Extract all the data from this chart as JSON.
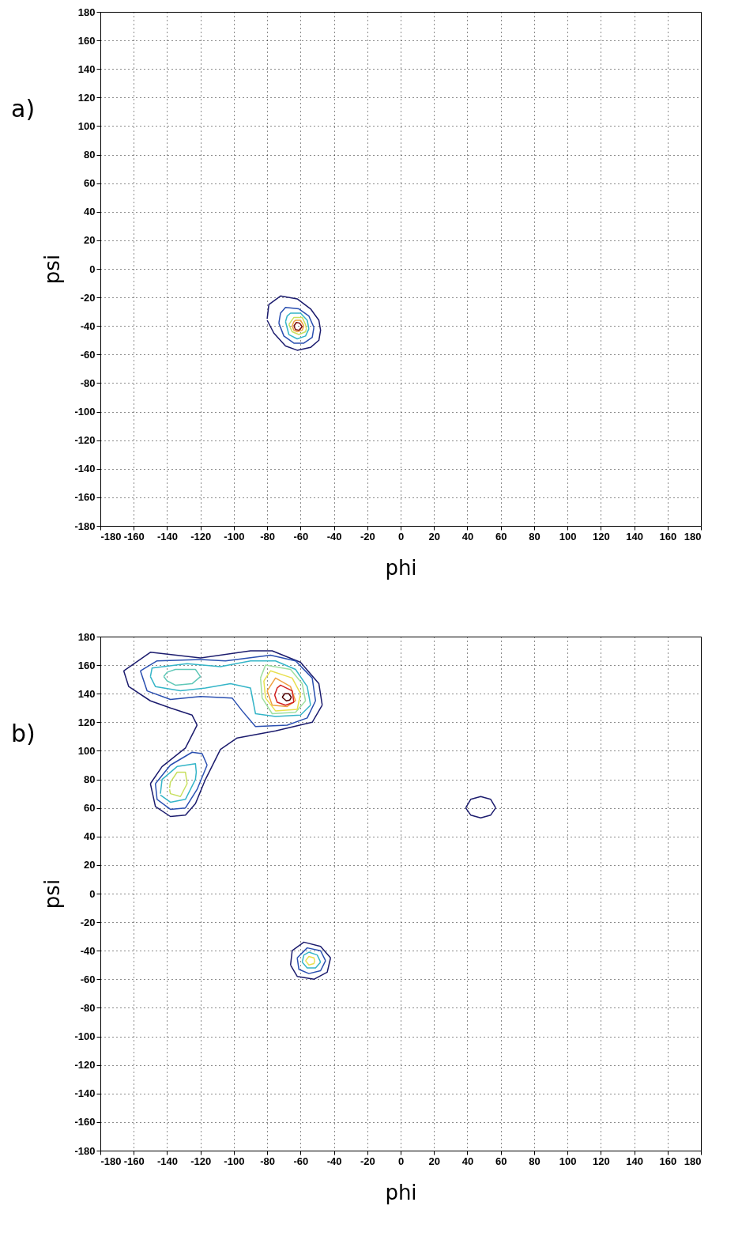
{
  "chart_data": [
    {
      "type": "line",
      "title": "a)",
      "xlabel": "phi",
      "ylabel": "psi",
      "xlim": [
        -180,
        180
      ],
      "ylim": [
        -180,
        180
      ],
      "xticks": [
        -180,
        -160,
        -140,
        -120,
        -100,
        -80,
        -60,
        -40,
        -20,
        0,
        20,
        40,
        60,
        80,
        100,
        120,
        140,
        160,
        180
      ],
      "yticks": [
        -180,
        -160,
        -140,
        -120,
        -100,
        -80,
        -60,
        -40,
        -20,
        0,
        20,
        40,
        60,
        80,
        100,
        120,
        140,
        160,
        180
      ],
      "grid": true,
      "legend": false,
      "series": [
        {
          "color": "#1c1c6e",
          "x": [
            -80,
            -79,
            -72,
            -62,
            -54,
            -49,
            -48,
            -49,
            -54,
            -62,
            -69,
            -76,
            -80
          ],
          "values": [
            -35,
            -25,
            -19,
            -21,
            -28,
            -36,
            -43,
            -50,
            -55,
            -57,
            -54,
            -45,
            -36
          ]
        },
        {
          "color": "#2a4fb0",
          "x": [
            -73,
            -72,
            -69,
            -61,
            -55,
            -52
          ],
          "values": [
            -38,
            -31,
            -27,
            -28,
            -33,
            -41
          ]
        },
        {
          "color": "#2a4fb0",
          "x": [
            -73,
            -70,
            -64,
            -58,
            -53,
            -52
          ],
          "values": [
            -38,
            -47,
            -52,
            -52,
            -48,
            -41
          ]
        },
        {
          "color": "#35b5c8",
          "x": [
            -69,
            -68,
            -66,
            -60,
            -56,
            -55
          ],
          "values": [
            -37,
            -33,
            -31,
            -31,
            -36,
            -42
          ]
        },
        {
          "color": "#35b5c8",
          "x": [
            -69,
            -67,
            -62,
            -57,
            -55
          ],
          "values": [
            -37,
            -46,
            -49,
            -47,
            -42
          ]
        },
        {
          "color": "#c8e060",
          "x": [
            -67,
            -64,
            -59,
            -57,
            -56.5
          ],
          "values": [
            -39,
            -34,
            -34,
            -39,
            -42
          ]
        },
        {
          "color": "#c8e060",
          "x": [
            -67,
            -65,
            -61,
            -57,
            -56.5
          ],
          "values": [
            -39,
            -44,
            -46,
            -44,
            -42
          ]
        },
        {
          "color": "#f0a040",
          "x": [
            -65,
            -64,
            -63,
            -60,
            -58
          ],
          "values": [
            -40,
            -37,
            -36,
            -36,
            -40
          ]
        },
        {
          "color": "#f0a040",
          "x": [
            -65,
            -64,
            -62,
            -59,
            -58
          ],
          "values": [
            -40,
            -43,
            -44,
            -43,
            -40
          ]
        },
        {
          "color": "#7a0a0a",
          "x": [
            -64,
            -62.5,
            -60.5,
            -59
          ],
          "values": [
            -40,
            -37.5,
            -38,
            -40.5
          ]
        },
        {
          "color": "#7c0c0c",
          "x": [
            -64,
            -63,
            -61,
            -59
          ],
          "values": [
            -40,
            -42.5,
            -43,
            -40.5
          ]
        }
      ]
    },
    {
      "type": "line",
      "title": "b)",
      "xlabel": "phi",
      "ylabel": "psi",
      "xlim": [
        -180,
        180
      ],
      "ylim": [
        -180,
        180
      ],
      "xticks": [
        -180,
        -160,
        -140,
        -120,
        -100,
        -80,
        -60,
        -40,
        -20,
        0,
        20,
        40,
        60,
        80,
        100,
        120,
        140,
        160,
        180
      ],
      "yticks": [
        -180,
        -160,
        -140,
        -120,
        -100,
        -80,
        -60,
        -40,
        -20,
        0,
        20,
        40,
        60,
        80,
        100,
        120,
        140,
        160,
        180
      ],
      "grid": true,
      "legend": false,
      "series": [
        {
          "color": "#1c1c6e",
          "x": [
            -166,
            -150,
            -120,
            -90,
            -77,
            -60,
            -49,
            -47
          ],
          "values": [
            156,
            169,
            165,
            170,
            170,
            162,
            147,
            132
          ]
        },
        {
          "color": "#1c1c6e",
          "x": [
            -150,
            -147,
            -138,
            -129,
            -123,
            -117,
            -108,
            -98,
            -75,
            -53,
            -47
          ],
          "values": [
            77,
            61,
            54,
            55,
            63,
            80,
            101,
            109,
            114,
            120,
            132
          ]
        },
        {
          "color": "#1c1c6e",
          "x": [
            -150,
            -143,
            -129,
            -122
          ],
          "values": [
            77,
            89,
            102,
            118
          ]
        },
        {
          "color": "#1c1c6e",
          "x": [
            -166,
            -163,
            -150,
            -138,
            -125,
            -122
          ],
          "values": [
            156,
            145,
            135,
            130,
            125,
            118
          ]
        },
        {
          "color": "#2a4fb0",
          "x": [
            -156,
            -146,
            -120,
            -105,
            -78,
            -63,
            -53,
            -51
          ],
          "values": [
            156,
            163,
            164,
            163,
            167,
            163,
            151,
            135
          ]
        },
        {
          "color": "#2a4fb0",
          "x": [
            -156,
            -152,
            -138,
            -120,
            -101,
            -95,
            -87,
            -68,
            -56,
            -51
          ],
          "values": [
            156,
            142,
            136,
            138,
            137,
            128,
            117,
            118,
            123,
            135
          ]
        },
        {
          "color": "#2a4fb0",
          "x": [
            -147,
            -138,
            -125,
            -119,
            -116
          ],
          "values": [
            77,
            90,
            99,
            98,
            90
          ]
        },
        {
          "color": "#2c52b4",
          "x": [
            -147,
            -146,
            -138,
            -129,
            -122,
            -116
          ],
          "values": [
            77,
            66,
            59,
            60,
            73,
            90
          ]
        },
        {
          "color": "#35b5c8",
          "x": [
            -144,
            -143,
            -134,
            -123,
            -122.5,
            -123,
            -129,
            -138,
            -144
          ],
          "values": [
            70,
            80,
            89,
            91,
            85,
            80,
            66,
            64,
            69
          ]
        },
        {
          "color": "#c8e060",
          "x": [
            -138.5,
            -138,
            -134,
            -129,
            -128,
            -132,
            -138,
            -138.5
          ],
          "values": [
            74,
            78,
            85,
            85,
            77,
            68,
            70,
            73
          ]
        },
        {
          "color": "#35b5c8",
          "x": [
            -150,
            -149,
            -128,
            -108,
            -90,
            -75,
            -63,
            -56,
            -54
          ],
          "values": [
            152,
            158,
            161,
            159,
            163,
            163,
            157,
            145,
            132
          ]
        },
        {
          "color": "#35b5c8",
          "x": [
            -150,
            -147,
            -132,
            -117,
            -102,
            -90,
            -87,
            -75,
            -60,
            -54
          ],
          "values": [
            152,
            145,
            142,
            144,
            147,
            144,
            126,
            124,
            125,
            132
          ]
        },
        {
          "color": "#60c8b8",
          "x": [
            -142,
            -140,
            -135,
            -123,
            -120
          ],
          "values": [
            152,
            155,
            157,
            157,
            152
          ]
        },
        {
          "color": "#60c8b8",
          "x": [
            -142,
            -140,
            -135,
            -125,
            -120
          ],
          "values": [
            152,
            149,
            146,
            147,
            152
          ]
        },
        {
          "color": "#a0e0a0",
          "x": [
            -84,
            -81,
            -66,
            -59,
            -57
          ],
          "values": [
            151,
            160,
            157,
            147,
            135
          ]
        },
        {
          "color": "#a0e0a0",
          "x": [
            -84,
            -83,
            -77,
            -63,
            -57
          ],
          "values": [
            151,
            137,
            126,
            127,
            135
          ]
        },
        {
          "color": "#e8e050",
          "x": [
            -82,
            -78,
            -65,
            -60
          ],
          "values": [
            149,
            156,
            151,
            140
          ]
        },
        {
          "color": "#e8e050",
          "x": [
            -82,
            -81,
            -75,
            -62,
            -60
          ],
          "values": [
            149,
            137,
            128,
            129,
            140
          ]
        },
        {
          "color": "#f0a040",
          "x": [
            -80,
            -75,
            -66,
            -63
          ],
          "values": [
            142,
            151,
            145,
            135
          ]
        },
        {
          "color": "#f0a040",
          "x": [
            -80,
            -77,
            -68,
            -63
          ],
          "values": [
            142,
            132,
            131,
            135
          ]
        },
        {
          "color": "#d02020",
          "x": [
            -75.5,
            -74,
            -72,
            -65,
            -64
          ],
          "values": [
            139,
            144,
            146,
            142,
            134
          ]
        },
        {
          "color": "#d02020",
          "x": [
            -75.5,
            -74,
            -69,
            -64
          ],
          "values": [
            139,
            134,
            132,
            134
          ]
        },
        {
          "color": "#500000",
          "x": [
            -71,
            -69.5,
            -67,
            -65.5
          ],
          "values": [
            137.5,
            140,
            140,
            137.5
          ]
        },
        {
          "color": "#520202",
          "x": [
            -71,
            -68.5,
            -66.5,
            -65.5
          ],
          "values": [
            137.5,
            135,
            135.5,
            137.5
          ]
        },
        {
          "color": "#1c1c6e",
          "x": [
            39,
            42,
            48,
            54,
            57
          ],
          "values": [
            60,
            66,
            68,
            66,
            60
          ]
        },
        {
          "color": "#1c1c6e",
          "x": [
            39,
            42,
            48,
            54,
            57
          ],
          "values": [
            60,
            55,
            53,
            55,
            60
          ]
        },
        {
          "color": "#1c1c6e",
          "x": [
            -66,
            -65,
            -58,
            -48,
            -42
          ],
          "values": [
            -50,
            -40,
            -34,
            -37,
            -45
          ]
        },
        {
          "color": "#1c1c6e",
          "x": [
            -66,
            -62,
            -52,
            -44,
            -42
          ],
          "values": [
            -50,
            -58,
            -60,
            -55,
            -45
          ]
        },
        {
          "color": "#2a4fb0",
          "x": [
            -62,
            -56,
            -48,
            -45
          ],
          "values": [
            -45,
            -38,
            -40,
            -47
          ]
        },
        {
          "color": "#2a4fb0",
          "x": [
            -62,
            -61,
            -55,
            -48,
            -45
          ],
          "values": [
            -45,
            -53,
            -56,
            -54,
            -47
          ]
        },
        {
          "color": "#35b5c8",
          "x": [
            -59,
            -58,
            -55,
            -50,
            -48
          ],
          "values": [
            -48,
            -43,
            -41,
            -43,
            -48
          ]
        },
        {
          "color": "#35b5c8",
          "x": [
            -59,
            -56,
            -51,
            -48
          ],
          "values": [
            -48,
            -52,
            -52,
            -48
          ]
        },
        {
          "color": "#e8e050",
          "x": [
            -57,
            -55,
            -52,
            -51.5
          ],
          "values": [
            -47,
            -44,
            -45,
            -47
          ]
        },
        {
          "color": "#e8e050",
          "x": [
            -57,
            -55,
            -52,
            -51.5
          ],
          "values": [
            -47,
            -50,
            -49,
            -47
          ]
        }
      ]
    }
  ]
}
